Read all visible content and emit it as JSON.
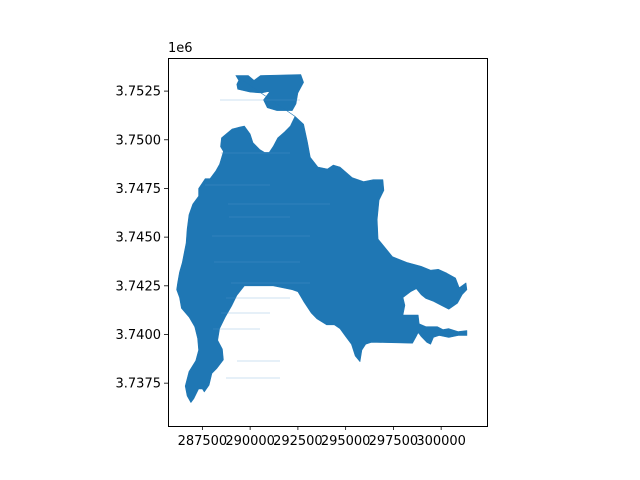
{
  "chart_data": {
    "type": "map",
    "geometry": "polygon",
    "fill_color": "#1f77b4",
    "offset_label": "1e6",
    "xlim": [
      285700,
      302400
    ],
    "ylim": [
      3735300,
      3754200
    ],
    "x_ticks": [
      287500,
      290000,
      292500,
      295000,
      297500,
      300000
    ],
    "x_tick_labels": [
      "287500",
      "290000",
      "292500",
      "295000",
      "297500",
      "300000"
    ],
    "y_ticks": [
      3737500,
      3740000,
      3742500,
      3745000,
      3747500,
      3750000,
      3752500
    ],
    "y_tick_labels": [
      "3.7375",
      "3.7400",
      "3.7425",
      "3.7450",
      "3.7475",
      "3.7500",
      "3.7525"
    ],
    "grid": false,
    "legend": "none",
    "outline": [
      [
        289250,
        3753300
      ],
      [
        289900,
        3753300
      ],
      [
        290200,
        3753050
      ],
      [
        290550,
        3753300
      ],
      [
        292650,
        3753350
      ],
      [
        292800,
        3752950
      ],
      [
        292500,
        3752400
      ],
      [
        292400,
        3751850
      ],
      [
        292200,
        3751500
      ],
      [
        291400,
        3751500
      ],
      [
        290900,
        3751650
      ],
      [
        290700,
        3752050
      ],
      [
        291050,
        3752500
      ],
      [
        290600,
        3752400
      ],
      [
        290000,
        3752450
      ],
      [
        289550,
        3752550
      ],
      [
        289350,
        3752600
      ],
      [
        289300,
        3752850
      ],
      [
        289400,
        3753050
      ],
      [
        289250,
        3753300
      ],
      [
        292350,
        3751200
      ],
      [
        292800,
        3750800
      ],
      [
        293000,
        3749900
      ],
      [
        293150,
        3749100
      ],
      [
        293550,
        3748600
      ],
      [
        294050,
        3748500
      ],
      [
        294350,
        3748700
      ],
      [
        294700,
        3748600
      ],
      [
        295350,
        3748050
      ],
      [
        295950,
        3747850
      ],
      [
        296450,
        3747950
      ],
      [
        296950,
        3747950
      ],
      [
        297000,
        3747400
      ],
      [
        296750,
        3746900
      ],
      [
        296650,
        3745900
      ],
      [
        296700,
        3744900
      ],
      [
        297450,
        3744000
      ],
      [
        298200,
        3743700
      ],
      [
        298950,
        3743500
      ],
      [
        299450,
        3743300
      ],
      [
        299850,
        3743350
      ],
      [
        300300,
        3743150
      ],
      [
        300750,
        3742900
      ],
      [
        300950,
        3742400
      ],
      [
        301300,
        3742650
      ],
      [
        301350,
        3742300
      ],
      [
        301100,
        3742050
      ],
      [
        300850,
        3741600
      ],
      [
        300400,
        3741300
      ],
      [
        300000,
        3741500
      ],
      [
        299600,
        3741700
      ],
      [
        299200,
        3741850
      ],
      [
        298950,
        3742050
      ],
      [
        298700,
        3742350
      ],
      [
        298400,
        3742200
      ],
      [
        298000,
        3741900
      ],
      [
        298100,
        3741500
      ],
      [
        298000,
        3741000
      ],
      [
        298800,
        3741000
      ],
      [
        298850,
        3740550
      ],
      [
        299200,
        3740400
      ],
      [
        299800,
        3740400
      ],
      [
        300100,
        3740250
      ],
      [
        300400,
        3740300
      ],
      [
        300900,
        3740150
      ],
      [
        301350,
        3740200
      ],
      [
        301350,
        3739950
      ],
      [
        300900,
        3739950
      ],
      [
        300400,
        3739850
      ],
      [
        299900,
        3739950
      ],
      [
        299600,
        3739850
      ],
      [
        299450,
        3739500
      ],
      [
        299250,
        3739600
      ],
      [
        298950,
        3739900
      ],
      [
        298800,
        3740100
      ],
      [
        298700,
        3739900
      ],
      [
        298500,
        3739550
      ],
      [
        296350,
        3739600
      ],
      [
        296050,
        3739500
      ],
      [
        295850,
        3739200
      ],
      [
        295750,
        3738600
      ],
      [
        295500,
        3738900
      ],
      [
        295300,
        3739500
      ],
      [
        295000,
        3739900
      ],
      [
        294700,
        3740300
      ],
      [
        294400,
        3740500
      ],
      [
        294000,
        3740500
      ],
      [
        293500,
        3740800
      ],
      [
        293200,
        3741100
      ],
      [
        292800,
        3741700
      ],
      [
        292500,
        3742200
      ],
      [
        292200,
        3742300
      ],
      [
        291200,
        3742500
      ],
      [
        289700,
        3742500
      ],
      [
        289300,
        3742000
      ],
      [
        289050,
        3741500
      ],
      [
        288700,
        3740900
      ],
      [
        288400,
        3740300
      ],
      [
        288300,
        3739700
      ],
      [
        288550,
        3739250
      ],
      [
        288600,
        3738700
      ],
      [
        288250,
        3738250
      ],
      [
        288000,
        3738000
      ],
      [
        287850,
        3737400
      ],
      [
        287600,
        3737050
      ],
      [
        287500,
        3737200
      ],
      [
        287300,
        3737200
      ],
      [
        287050,
        3736700
      ],
      [
        286900,
        3736500
      ],
      [
        286700,
        3736850
      ],
      [
        286600,
        3737350
      ],
      [
        286800,
        3738100
      ],
      [
        287150,
        3738650
      ],
      [
        287300,
        3739200
      ],
      [
        287250,
        3739800
      ],
      [
        287100,
        3740400
      ],
      [
        286800,
        3740900
      ],
      [
        286400,
        3741350
      ],
      [
        286300,
        3741900
      ],
      [
        286150,
        3742300
      ],
      [
        286200,
        3742650
      ],
      [
        286300,
        3743200
      ],
      [
        286450,
        3743700
      ],
      [
        286550,
        3744200
      ],
      [
        286650,
        3744700
      ],
      [
        286700,
        3745400
      ],
      [
        286800,
        3746150
      ],
      [
        287000,
        3746700
      ],
      [
        287300,
        3747100
      ],
      [
        287300,
        3747500
      ],
      [
        287650,
        3748000
      ],
      [
        287900,
        3748000
      ],
      [
        288200,
        3748400
      ],
      [
        288400,
        3748750
      ],
      [
        288600,
        3749400
      ],
      [
        288450,
        3749650
      ],
      [
        288500,
        3750100
      ],
      [
        289050,
        3750550
      ],
      [
        289450,
        3750650
      ],
      [
        289700,
        3750700
      ],
      [
        290000,
        3750300
      ],
      [
        290150,
        3749850
      ],
      [
        290500,
        3749500
      ],
      [
        290750,
        3749350
      ],
      [
        291000,
        3749350
      ],
      [
        291200,
        3749650
      ],
      [
        291450,
        3750100
      ],
      [
        291800,
        3750400
      ],
      [
        292100,
        3750700
      ],
      [
        292350,
        3751200
      ]
    ]
  }
}
